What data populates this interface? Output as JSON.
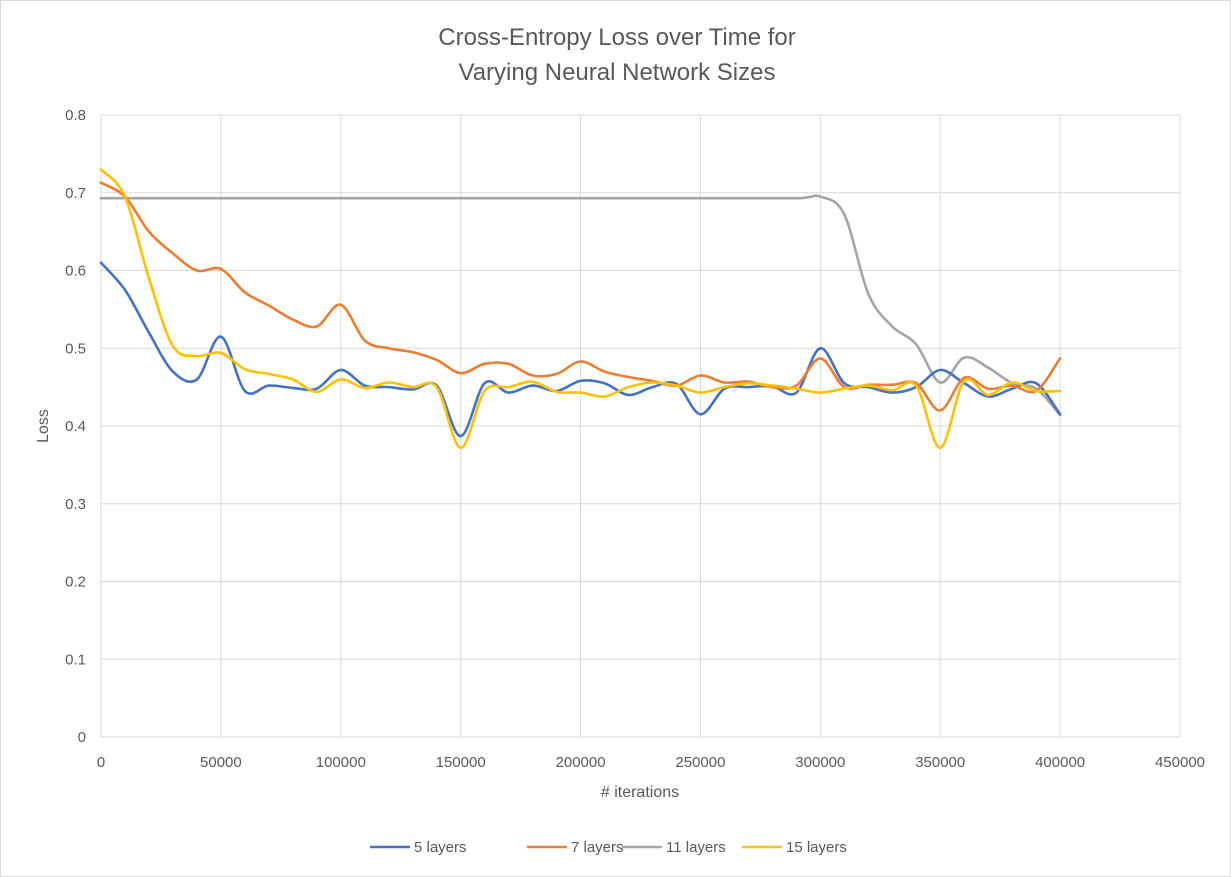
{
  "chart_data": {
    "type": "line",
    "title_lines": [
      "Cross-Entropy Loss over Time for",
      "Varying Neural Network Sizes"
    ],
    "xlabel": "# iterations",
    "ylabel": "Loss",
    "xlim": [
      0,
      450000
    ],
    "ylim": [
      0,
      0.8
    ],
    "x_ticks": [
      0,
      50000,
      100000,
      150000,
      200000,
      250000,
      300000,
      350000,
      400000,
      450000
    ],
    "y_ticks": [
      0,
      0.1,
      0.2,
      0.3,
      0.4,
      0.5,
      0.6,
      0.7,
      0.8
    ],
    "grid": true,
    "legend_position": "bottom",
    "series": [
      {
        "name": "5 layers",
        "color": "#4472C4",
        "points": [
          [
            0,
            0.61
          ],
          [
            10000,
            0.575
          ],
          [
            20000,
            0.52
          ],
          [
            30000,
            0.47
          ],
          [
            40000,
            0.46
          ],
          [
            50000,
            0.515
          ],
          [
            60000,
            0.445
          ],
          [
            70000,
            0.452
          ],
          [
            80000,
            0.449
          ],
          [
            90000,
            0.448
          ],
          [
            100000,
            0.472
          ],
          [
            110000,
            0.452
          ],
          [
            120000,
            0.45
          ],
          [
            130000,
            0.447
          ],
          [
            140000,
            0.452
          ],
          [
            150000,
            0.387
          ],
          [
            160000,
            0.455
          ],
          [
            170000,
            0.443
          ],
          [
            180000,
            0.452
          ],
          [
            190000,
            0.445
          ],
          [
            200000,
            0.458
          ],
          [
            210000,
            0.455
          ],
          [
            220000,
            0.44
          ],
          [
            230000,
            0.45
          ],
          [
            240000,
            0.454
          ],
          [
            250000,
            0.415
          ],
          [
            260000,
            0.448
          ],
          [
            270000,
            0.45
          ],
          [
            280000,
            0.451
          ],
          [
            290000,
            0.443
          ],
          [
            300000,
            0.5
          ],
          [
            310000,
            0.455
          ],
          [
            320000,
            0.45
          ],
          [
            330000,
            0.443
          ],
          [
            340000,
            0.45
          ],
          [
            350000,
            0.472
          ],
          [
            360000,
            0.455
          ],
          [
            370000,
            0.438
          ],
          [
            380000,
            0.448
          ],
          [
            390000,
            0.455
          ],
          [
            400000,
            0.415
          ]
        ]
      },
      {
        "name": "7 layers",
        "color": "#ED7D31",
        "points": [
          [
            0,
            0.713
          ],
          [
            10000,
            0.695
          ],
          [
            20000,
            0.65
          ],
          [
            30000,
            0.622
          ],
          [
            40000,
            0.6
          ],
          [
            50000,
            0.602
          ],
          [
            60000,
            0.572
          ],
          [
            70000,
            0.555
          ],
          [
            80000,
            0.537
          ],
          [
            90000,
            0.528
          ],
          [
            100000,
            0.556
          ],
          [
            110000,
            0.51
          ],
          [
            120000,
            0.5
          ],
          [
            130000,
            0.495
          ],
          [
            140000,
            0.485
          ],
          [
            150000,
            0.468
          ],
          [
            160000,
            0.48
          ],
          [
            170000,
            0.48
          ],
          [
            180000,
            0.465
          ],
          [
            190000,
            0.467
          ],
          [
            200000,
            0.483
          ],
          [
            210000,
            0.47
          ],
          [
            220000,
            0.463
          ],
          [
            230000,
            0.458
          ],
          [
            240000,
            0.452
          ],
          [
            250000,
            0.465
          ],
          [
            260000,
            0.456
          ],
          [
            270000,
            0.457
          ],
          [
            280000,
            0.45
          ],
          [
            290000,
            0.452
          ],
          [
            300000,
            0.487
          ],
          [
            310000,
            0.45
          ],
          [
            320000,
            0.453
          ],
          [
            330000,
            0.453
          ],
          [
            340000,
            0.455
          ],
          [
            350000,
            0.42
          ],
          [
            360000,
            0.462
          ],
          [
            370000,
            0.448
          ],
          [
            380000,
            0.452
          ],
          [
            390000,
            0.445
          ],
          [
            400000,
            0.487
          ]
        ]
      },
      {
        "name": "11 layers",
        "color": "#A5A5A5",
        "points": [
          [
            0,
            0.693
          ],
          [
            50000,
            0.693
          ],
          [
            100000,
            0.693
          ],
          [
            150000,
            0.693
          ],
          [
            200000,
            0.693
          ],
          [
            250000,
            0.693
          ],
          [
            290000,
            0.693
          ],
          [
            300000,
            0.695
          ],
          [
            310000,
            0.672
          ],
          [
            320000,
            0.57
          ],
          [
            330000,
            0.528
          ],
          [
            340000,
            0.505
          ],
          [
            350000,
            0.456
          ],
          [
            360000,
            0.488
          ],
          [
            370000,
            0.475
          ],
          [
            380000,
            0.455
          ],
          [
            390000,
            0.448
          ],
          [
            400000,
            0.414
          ]
        ]
      },
      {
        "name": "15 layers",
        "color": "#FFC000",
        "points": [
          [
            0,
            0.73
          ],
          [
            10000,
            0.695
          ],
          [
            20000,
            0.59
          ],
          [
            30000,
            0.503
          ],
          [
            40000,
            0.49
          ],
          [
            50000,
            0.494
          ],
          [
            60000,
            0.473
          ],
          [
            70000,
            0.467
          ],
          [
            80000,
            0.46
          ],
          [
            90000,
            0.444
          ],
          [
            100000,
            0.46
          ],
          [
            110000,
            0.449
          ],
          [
            120000,
            0.456
          ],
          [
            130000,
            0.45
          ],
          [
            140000,
            0.45
          ],
          [
            150000,
            0.372
          ],
          [
            160000,
            0.445
          ],
          [
            170000,
            0.45
          ],
          [
            180000,
            0.457
          ],
          [
            190000,
            0.444
          ],
          [
            200000,
            0.443
          ],
          [
            210000,
            0.438
          ],
          [
            220000,
            0.45
          ],
          [
            230000,
            0.456
          ],
          [
            240000,
            0.452
          ],
          [
            250000,
            0.443
          ],
          [
            260000,
            0.45
          ],
          [
            270000,
            0.455
          ],
          [
            280000,
            0.452
          ],
          [
            290000,
            0.448
          ],
          [
            300000,
            0.443
          ],
          [
            310000,
            0.448
          ],
          [
            320000,
            0.452
          ],
          [
            330000,
            0.446
          ],
          [
            340000,
            0.452
          ],
          [
            350000,
            0.372
          ],
          [
            360000,
            0.458
          ],
          [
            370000,
            0.44
          ],
          [
            380000,
            0.456
          ],
          [
            390000,
            0.445
          ],
          [
            400000,
            0.445
          ]
        ]
      }
    ]
  }
}
